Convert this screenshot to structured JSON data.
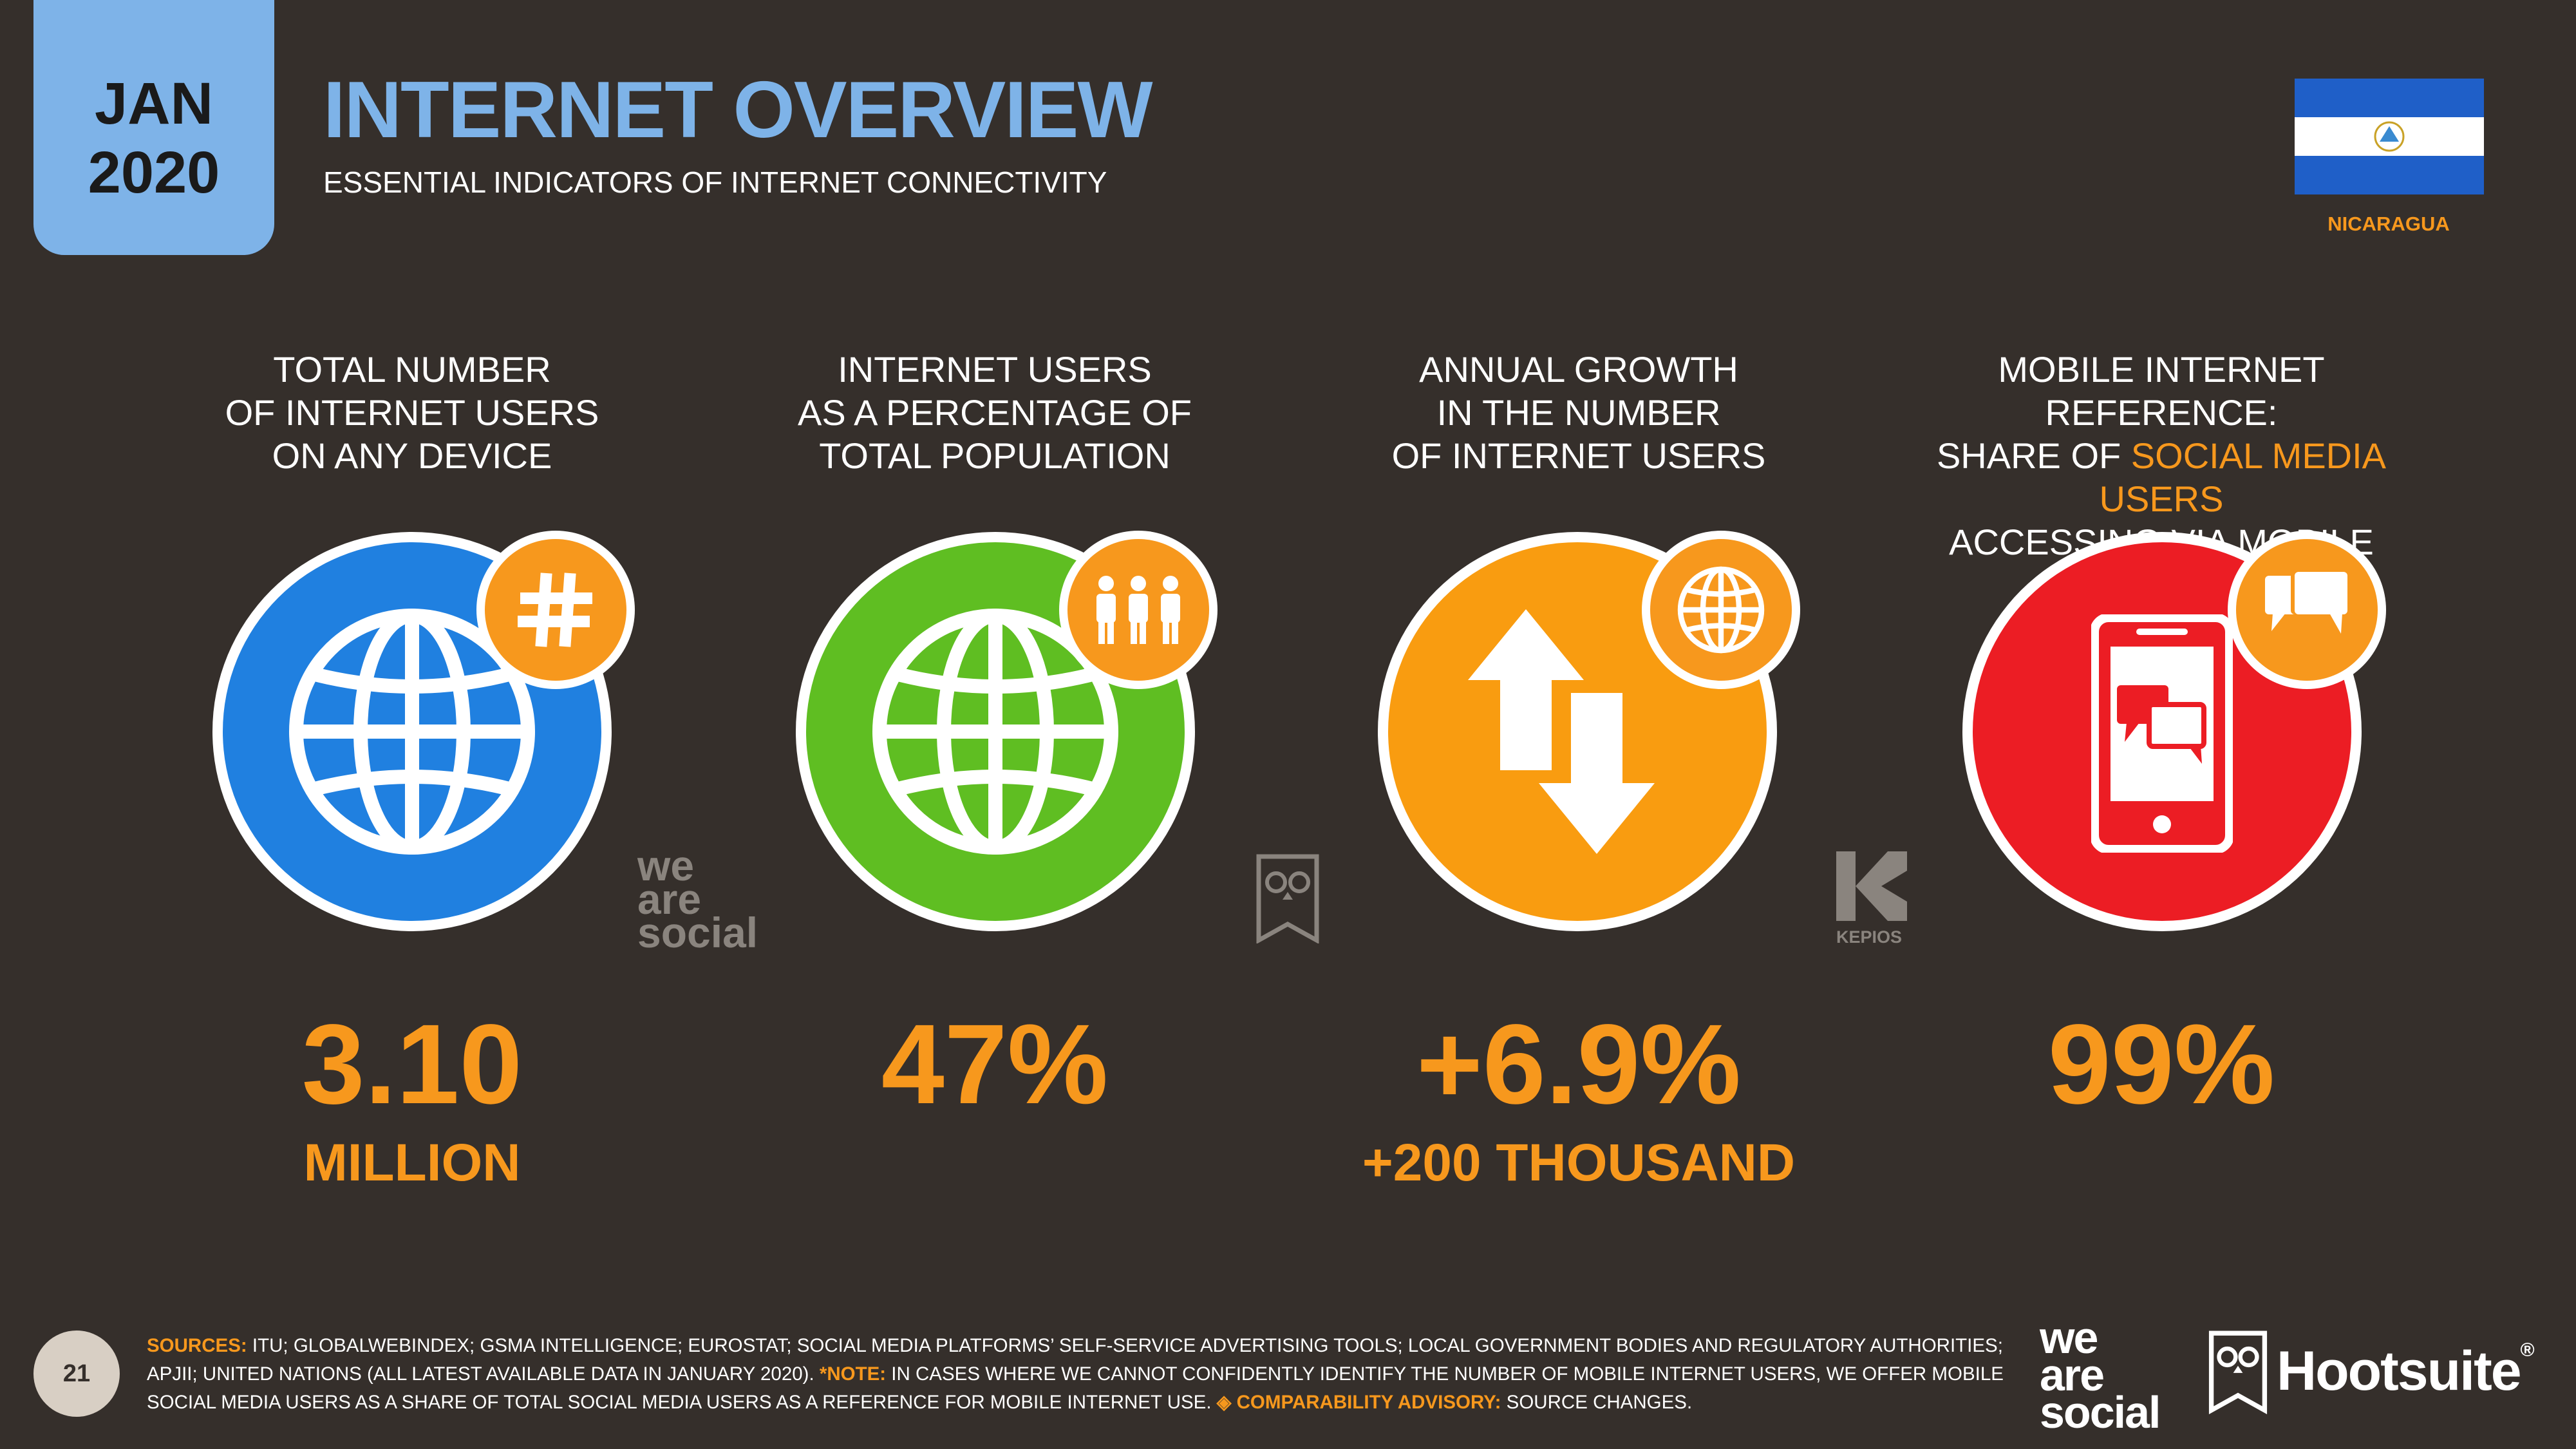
{
  "header": {
    "month": "JAN",
    "year": "2020",
    "title": "INTERNET OVERVIEW",
    "subtitle": "ESSENTIAL INDICATORS OF INTERNET CONNECTIVITY",
    "country": "NICARAGUA"
  },
  "colors": {
    "background": "#352f2b",
    "accent_blue": "#7eb3e8",
    "accent_orange": "#f7981d",
    "blue_circle": "#2080e0",
    "green_circle": "#5fbe22",
    "orange_circle": "#f99c10",
    "red_circle": "#ec1d24"
  },
  "indicators": [
    {
      "label_lines": [
        "TOTAL NUMBER",
        "OF INTERNET USERS",
        "ON ANY DEVICE"
      ],
      "value": "3.10",
      "unit": "MILLION",
      "icon": "globe-icon",
      "badge_icon": "hash-icon"
    },
    {
      "label_lines": [
        "INTERNET USERS",
        "AS A PERCENTAGE OF",
        "TOTAL POPULATION"
      ],
      "value": "47%",
      "unit": "",
      "icon": "globe-icon",
      "badge_icon": "people-icon"
    },
    {
      "label_lines": [
        "ANNUAL GROWTH",
        "IN THE NUMBER",
        "OF INTERNET USERS"
      ],
      "value": "+6.9%",
      "unit": "+200 THOUSAND",
      "icon": "up-down-arrows-icon",
      "badge_icon": "globe-icon"
    },
    {
      "label_line1": "MOBILE INTERNET REFERENCE:",
      "label_line2_pre": "SHARE OF ",
      "label_line2_hl": "SOCIAL MEDIA USERS",
      "label_line3": "ACCESSING VIA MOBILE PHONES",
      "label_asterisk": "*",
      "value": "99%",
      "unit": "",
      "icon": "mobile-phone-chat-icon",
      "badge_icon": "chat-bubbles-icon"
    }
  ],
  "watermarks": {
    "we_are_social": [
      "we",
      "are",
      "social"
    ],
    "kepios": "KEPIOS"
  },
  "footer": {
    "page_number": "21",
    "sources_label": "SOURCES:",
    "sources_text": " ITU; GLOBALWEBINDEX; GSMA INTELLIGENCE; EUROSTAT; SOCIAL MEDIA PLATFORMS’ SELF-SERVICE ADVERTISING TOOLS; LOCAL GOVERNMENT BODIES AND REGULATORY AUTHORITIES; APJII; UNITED NATIONS (ALL LATEST AVAILABLE DATA IN JANUARY 2020). ",
    "note_label": "*NOTE:",
    "note_text": " IN CASES WHERE WE CANNOT CONFIDENTLY IDENTIFY THE NUMBER OF MOBILE INTERNET USERS, WE OFFER MOBILE SOCIAL MEDIA USERS AS A SHARE OF TOTAL SOCIAL MEDIA USERS AS A REFERENCE FOR MOBILE INTERNET USE. ",
    "advisory_label": "◈ COMPARABILITY ADVISORY:",
    "advisory_text": " SOURCE CHANGES.",
    "brand1": [
      "we",
      "are",
      "social"
    ],
    "brand2": "Hootsuite",
    "brand2_mark": "®"
  }
}
